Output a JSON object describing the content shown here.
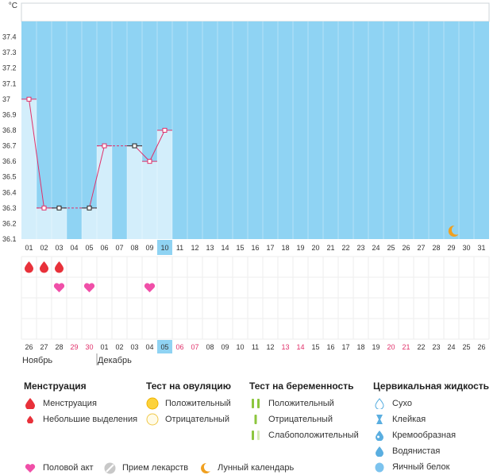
{
  "chart_data": {
    "type": "line",
    "unit": "°C",
    "ylim": [
      36.1,
      37.5
    ],
    "y_ticks": [
      "36.1",
      "36.2",
      "36.3",
      "36.4",
      "36.5",
      "36.6",
      "36.7",
      "36.8",
      "36.9",
      "37",
      "37.1",
      "37.2",
      "37.3",
      "37.4"
    ],
    "cycle_days": [
      "01",
      "02",
      "03",
      "04",
      "05",
      "06",
      "07",
      "08",
      "09",
      "10",
      "11",
      "12",
      "13",
      "14",
      "15",
      "16",
      "17",
      "18",
      "19",
      "20",
      "21",
      "22",
      "23",
      "24",
      "25",
      "26",
      "27",
      "28",
      "29",
      "30",
      "31"
    ],
    "current_cycle_day_index": 9,
    "temperatures": [
      37.0,
      36.3,
      36.3,
      null,
      36.3,
      36.7,
      null,
      36.7,
      36.6,
      36.8
    ],
    "point_markers": [
      "pink",
      "pink",
      "black",
      null,
      "black",
      "pink",
      null,
      "black",
      "pink",
      "pink"
    ],
    "menstruation_days_index": [
      0,
      1,
      2
    ],
    "intercourse_days_index": [
      2,
      4,
      8
    ],
    "moon_day_index": 28,
    "calendar_dates": [
      "26",
      "27",
      "28",
      "29",
      "30",
      "01",
      "02",
      "03",
      "04",
      "05",
      "06",
      "07",
      "08",
      "09",
      "10",
      "11",
      "12",
      "13",
      "14",
      "15",
      "16",
      "17",
      "18",
      "19",
      "20",
      "21",
      "22",
      "23",
      "24",
      "25",
      "26"
    ],
    "calendar_red_index": [
      3,
      4,
      10,
      11,
      17,
      18,
      24,
      25
    ],
    "today_index": 9,
    "months": [
      {
        "label": "Ноябрь",
        "start_index": 0
      },
      {
        "label": "Декабрь",
        "start_index": 5
      }
    ]
  },
  "legend": {
    "menstruation": {
      "title": "Менструация",
      "items": [
        {
          "label": "Менструация",
          "icon": "drop-icon"
        },
        {
          "label": "Небольшие выделения",
          "icon": "small-drop-icon"
        }
      ]
    },
    "ovulation": {
      "title": "Тест на овуляцию",
      "items": [
        {
          "label": "Положительный",
          "icon": "filled-circle-icon"
        },
        {
          "label": "Отрицательный",
          "icon": "empty-circle-icon"
        }
      ]
    },
    "pregnancy": {
      "title": "Тест на беременность",
      "items": [
        {
          "label": "Положительный",
          "icon": "two-stripes-icon"
        },
        {
          "label": "Отрицательный",
          "icon": "one-stripe-icon"
        },
        {
          "label": "Слабоположительный",
          "icon": "faint-stripe-icon"
        }
      ]
    },
    "fluid": {
      "title": "Цервикальная жидкость",
      "items": [
        {
          "label": "Сухо",
          "icon": "dry-drop-icon"
        },
        {
          "label": "Клейкая",
          "icon": "sticky-icon"
        },
        {
          "label": "Кремообразная",
          "icon": "creamy-icon"
        },
        {
          "label": "Водянистая",
          "icon": "watery-icon"
        },
        {
          "label": "Яичный белок",
          "icon": "egg-white-icon"
        }
      ]
    },
    "bottom": {
      "intercourse": "Половой акт",
      "medication": "Прием лекарств",
      "lunar": "Лунный календарь"
    }
  },
  "colors": {
    "plot_bg": "#8fd3f3",
    "bar": "#d3eefb",
    "today": "#8fd3f3",
    "line": "#e0306a",
    "blood": "#e8313a",
    "heart": "#f04fa8",
    "moon": "#f0a020",
    "red_date": "#e0306a"
  }
}
